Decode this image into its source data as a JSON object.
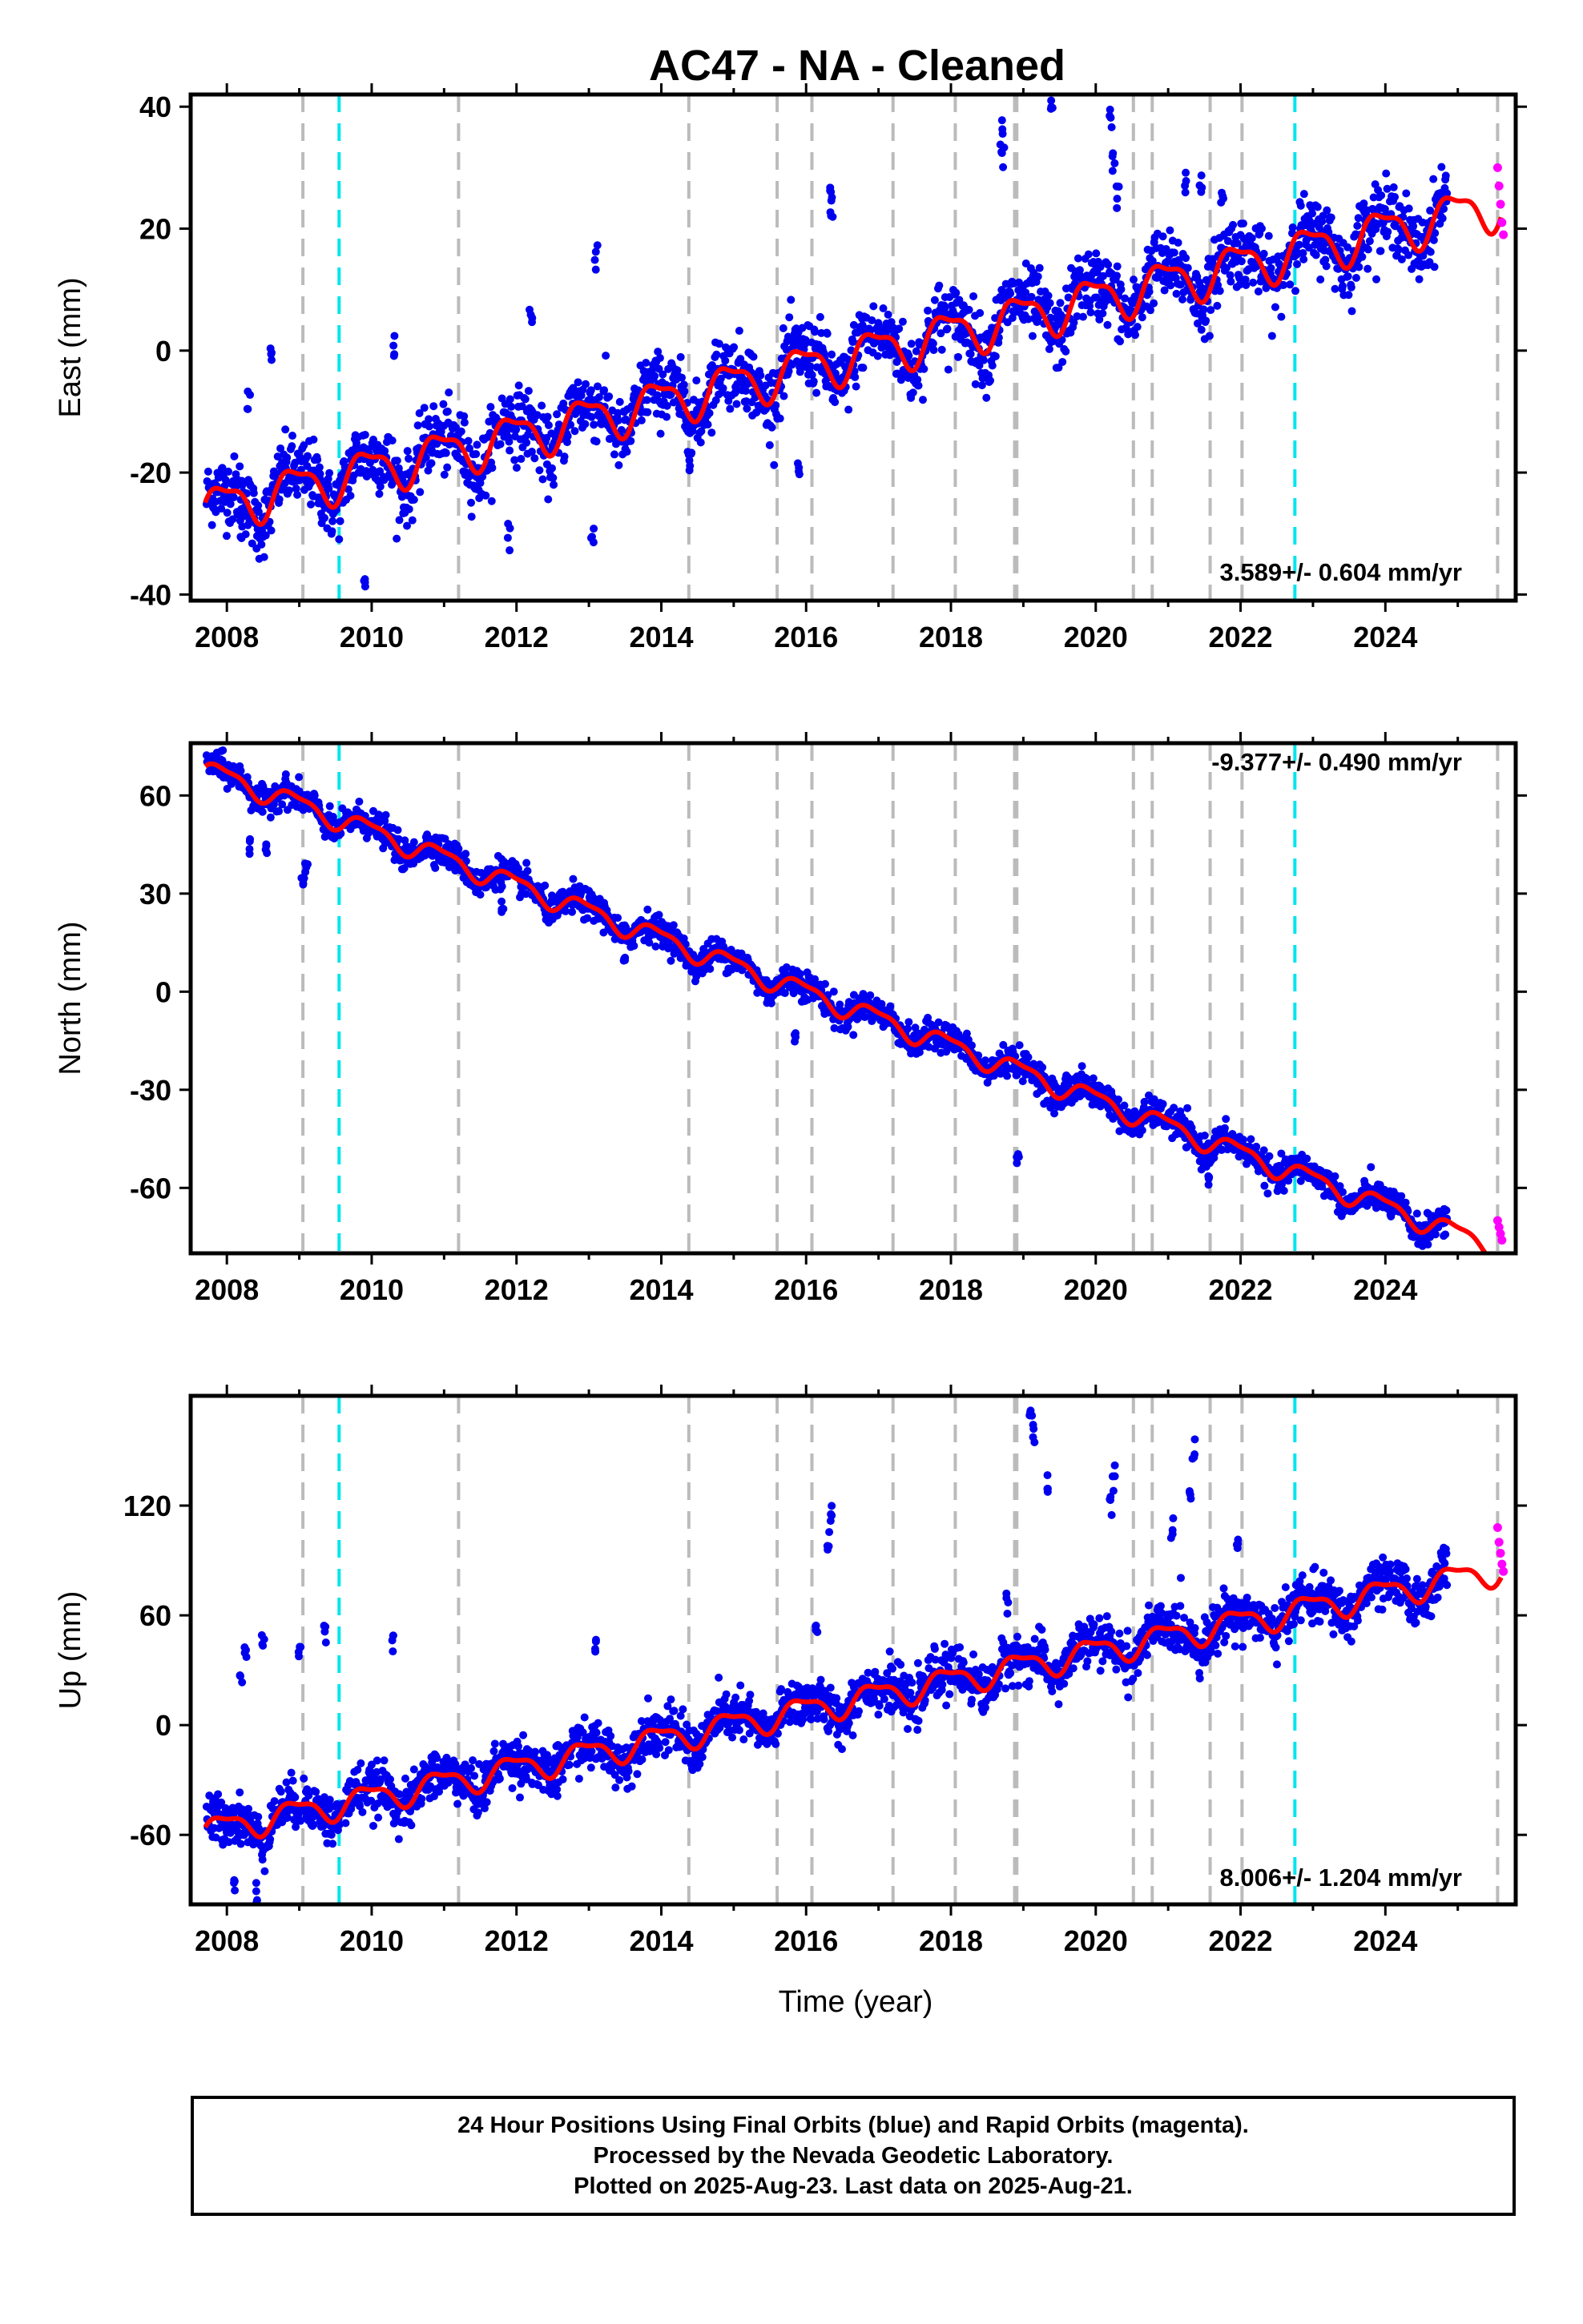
{
  "chart_data": {
    "type": "scatter",
    "title": "AC47  - NA - Cleaned",
    "xlabel": "Time (year)",
    "xlim": [
      2007.5,
      2025.8
    ],
    "xticks": [
      2008,
      2010,
      2012,
      2014,
      2016,
      2018,
      2020,
      2022,
      2024
    ],
    "xtick_labels": [
      "2008",
      "2010",
      "2012",
      "2014",
      "2016",
      "2018",
      "2020",
      "2022",
      "2024"
    ],
    "grid": false,
    "colors": {
      "final_orbits": "#0000ee",
      "rapid_orbits": "#ff00ff",
      "model": "#ff0000",
      "equipment_change": "#bbbbbb",
      "earthquake": "#00e5ee"
    },
    "gray_event_lines": [
      2009.05,
      2011.2,
      2014.38,
      2015.6,
      2016.08,
      2017.2,
      2018.06,
      2018.88,
      2018.91,
      2020.52,
      2020.78,
      2021.58,
      2022.02,
      2025.55
    ],
    "cyan_event_lines": [
      2009.55,
      2022.75
    ],
    "panels": [
      {
        "component": "east",
        "ylabel": "East (mm)",
        "ylim": [
          -41,
          42
        ],
        "yticks": [
          -40,
          -20,
          0,
          20,
          40
        ],
        "ytick_labels": [
          "-40",
          "-20",
          "0",
          "20",
          "40"
        ],
        "rate_text": "3.589+/- 0.604 mm/yr",
        "trend": {
          "x0": 2007.7,
          "y0": -26,
          "slope": 2.8
        },
        "seasonal_amplitude": 3.5,
        "scatter_sd": 2.8,
        "outliers": [
          [
            2008.3,
            -8
          ],
          [
            2008.2,
            -30
          ],
          [
            2008.6,
            0
          ],
          [
            2009.9,
            -37
          ],
          [
            2010.3,
            0
          ],
          [
            2011.9,
            -31
          ],
          [
            2012.2,
            5
          ],
          [
            2013.05,
            -31
          ],
          [
            2013.1,
            15
          ],
          [
            2014.4,
            -19
          ],
          [
            2015.9,
            -19
          ],
          [
            2016.35,
            26
          ],
          [
            2016.35,
            23
          ],
          [
            2018.7,
            31
          ],
          [
            2018.72,
            35
          ],
          [
            2019.4,
            40
          ],
          [
            2020.2,
            38
          ],
          [
            2020.25,
            31
          ],
          [
            2020.3,
            25
          ],
          [
            2021.25,
            28
          ],
          [
            2021.45,
            29
          ],
          [
            2021.75,
            26
          ]
        ],
        "rapid": [
          [
            2025.55,
            30
          ],
          [
            2025.57,
            27
          ],
          [
            2025.59,
            24
          ],
          [
            2025.61,
            21
          ],
          [
            2025.63,
            19
          ]
        ]
      },
      {
        "component": "north",
        "ylabel": "North (mm)",
        "ylim": [
          -80,
          76
        ],
        "yticks": [
          -60,
          -30,
          0,
          30,
          60
        ],
        "ytick_labels": [
          "-60",
          "-30",
          "0",
          "30",
          "60"
        ],
        "rate_text": "-9.377+/- 0.490 mm/yr",
        "trend": {
          "x0": 2007.7,
          "y0": 68,
          "slope": -8.2
        },
        "seasonal_amplitude": 3.0,
        "scatter_sd": 2.2,
        "outliers": [
          [
            2008.3,
            44
          ],
          [
            2008.55,
            43
          ],
          [
            2009.05,
            34
          ],
          [
            2009.1,
            38
          ],
          [
            2010.2,
            48
          ],
          [
            2011.8,
            25
          ],
          [
            2013.5,
            10
          ],
          [
            2014.5,
            8
          ],
          [
            2015.85,
            -14
          ],
          [
            2018.92,
            -51
          ],
          [
            2019.6,
            -26
          ],
          [
            2020.2,
            -33
          ],
          [
            2021.25,
            -43
          ],
          [
            2021.55,
            -58
          ]
        ],
        "rapid": [
          [
            2025.55,
            -70
          ],
          [
            2025.57,
            -72
          ],
          [
            2025.59,
            -74
          ],
          [
            2025.61,
            -76
          ]
        ]
      },
      {
        "component": "up",
        "ylabel": "Up (mm)",
        "ylim": [
          -98,
          180
        ],
        "yticks": [
          -60,
          0,
          60,
          120
        ],
        "ytick_labels": [
          "-60",
          "0",
          "60",
          "120"
        ],
        "rate_text": "8.006+/- 1.204 mm/yr",
        "trend": {
          "x0": 2007.7,
          "y0": -58,
          "slope": 8.0
        },
        "seasonal_amplitude": 7,
        "scatter_sd": 6.5,
        "outliers": [
          [
            2008.2,
            25
          ],
          [
            2008.25,
            40
          ],
          [
            2008.5,
            48
          ],
          [
            2009.0,
            40
          ],
          [
            2009.35,
            50
          ],
          [
            2010.3,
            45
          ],
          [
            2013.1,
            45
          ],
          [
            2016.35,
            112
          ],
          [
            2016.3,
            100
          ],
          [
            2016.15,
            55
          ],
          [
            2018.78,
            68
          ],
          [
            2019.1,
            170
          ],
          [
            2019.15,
            160
          ],
          [
            2019.35,
            130
          ],
          [
            2020.25,
            135
          ],
          [
            2020.2,
            120
          ],
          [
            2021.35,
            150
          ],
          [
            2021.3,
            125
          ],
          [
            2021.05,
            105
          ],
          [
            2021.95,
            97
          ],
          [
            2008.4,
            -93
          ],
          [
            2008.1,
            -85
          ]
        ],
        "rapid": [
          [
            2025.55,
            108
          ],
          [
            2025.57,
            100
          ],
          [
            2025.59,
            94
          ],
          [
            2025.61,
            88
          ],
          [
            2025.63,
            84
          ]
        ]
      }
    ]
  },
  "caption": {
    "line1": "24 Hour Positions Using Final Orbits (blue) and Rapid Orbits (magenta).",
    "line2": "Processed by the Nevada Geodetic Laboratory.",
    "line3": "Plotted on 2025-Aug-23. Last data on 2025-Aug-21."
  }
}
